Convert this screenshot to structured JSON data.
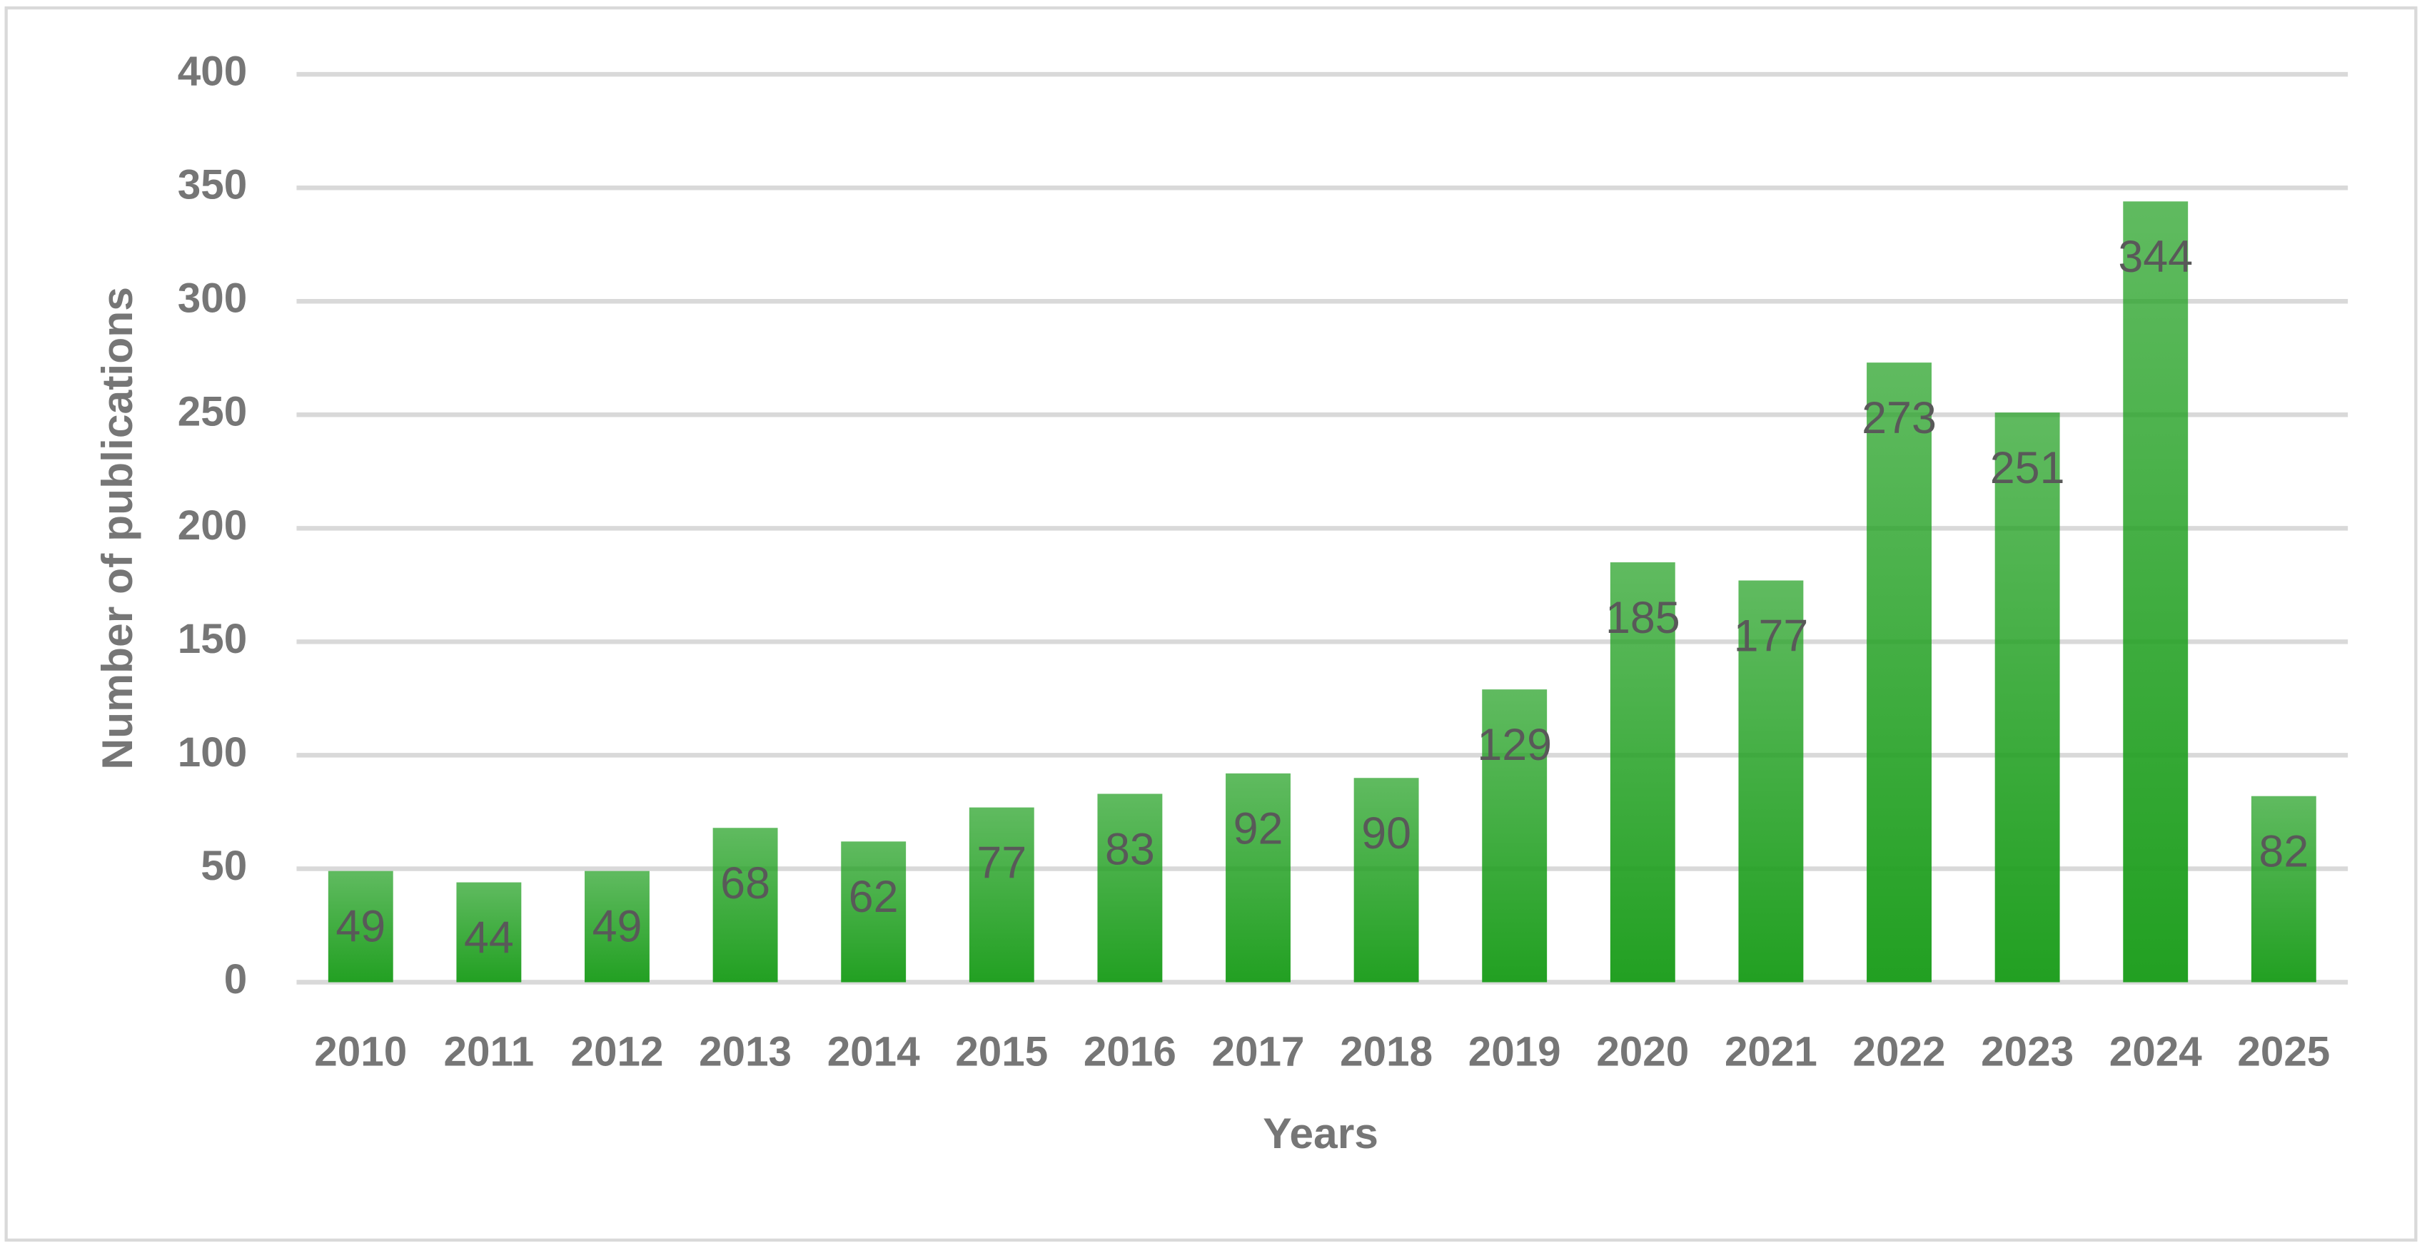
{
  "chart_data": {
    "type": "bar",
    "x_label": "Years",
    "y_label": "Number of publications",
    "categories": [
      "2010",
      "2011",
      "2012",
      "2013",
      "2014",
      "2015",
      "2016",
      "2017",
      "2018",
      "2019",
      "2020",
      "2021",
      "2022",
      "2023",
      "2024",
      "2025"
    ],
    "values": [
      49,
      44,
      49,
      68,
      62,
      77,
      83,
      92,
      90,
      129,
      185,
      177,
      273,
      251,
      344,
      82
    ],
    "color": "#22a022",
    "ylim": [
      0,
      400
    ],
    "yticks": [
      0,
      50,
      100,
      150,
      200,
      250,
      300,
      350,
      400
    ],
    "grid": true
  }
}
